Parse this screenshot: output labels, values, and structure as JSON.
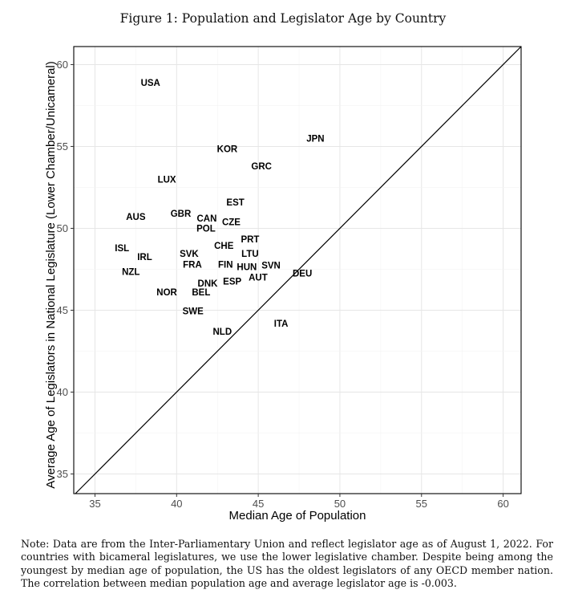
{
  "figure_title": "Figure 1: Population and Legislator Age by Country",
  "note": "Note: Data are from the Inter-Parliamentary Union and reflect legislator age as of August 1, 2022. For countries with bicameral legislatures, we use the lower legislative chamber. Despite being among the youngest by median age of population, the US has the oldest legislators of any OECD member nation. The correlation between median population age and average legislator age is -0.003.",
  "chart_data": {
    "type": "scatter",
    "xlabel": "Median Age of Population",
    "ylabel": "Average Age of Legislators in National Legislature (Lower Chamber/Unicameral)",
    "xlim": [
      33.7,
      61.1
    ],
    "ylim": [
      33.8,
      61.1
    ],
    "xticks": [
      35,
      40,
      45,
      50,
      55,
      60
    ],
    "yticks": [
      35,
      40,
      45,
      50,
      55,
      60
    ],
    "grid": true,
    "reference_line": "y = x",
    "points": [
      {
        "label": "USA",
        "x": 38.4,
        "y": 58.9
      },
      {
        "label": "JPN",
        "x": 48.5,
        "y": 55.5
      },
      {
        "label": "KOR",
        "x": 43.1,
        "y": 54.85
      },
      {
        "label": "GRC",
        "x": 45.2,
        "y": 53.8
      },
      {
        "label": "LUX",
        "x": 39.4,
        "y": 53.0
      },
      {
        "label": "EST",
        "x": 43.6,
        "y": 51.6
      },
      {
        "label": "AUS",
        "x": 37.5,
        "y": 50.7
      },
      {
        "label": "GBR",
        "x": 40.55,
        "y": 50.9
      },
      {
        "label": "CAN",
        "x": 41.7,
        "y": 50.6
      },
      {
        "label": "CZE",
        "x": 43.2,
        "y": 50.4
      },
      {
        "label": "POL",
        "x": 41.8,
        "y": 50.0
      },
      {
        "label": "ISL",
        "x": 37.0,
        "y": 48.7
      },
      {
        "label": "IRL",
        "x": 37.75,
        "y": 48.4
      },
      {
        "label": "PRT",
        "x": 44.5,
        "y": 49.0
      },
      {
        "label": "LTU",
        "x": 44.5,
        "y": 48.9
      },
      {
        "label": "CHE",
        "x": 42.6,
        "y": 48.6
      },
      {
        "label": "SVK",
        "x": 41.7,
        "y": 48.3
      },
      {
        "label": "FRA",
        "x": 41.8,
        "y": 48.0
      },
      {
        "label": "FIN",
        "x": 42.7,
        "y": 48.0
      },
      {
        "label": "SVN",
        "x": 44.8,
        "y": 47.5
      },
      {
        "label": "AUT",
        "x": 44.4,
        "y": 47.25
      },
      {
        "label": "HUN",
        "x": 44.3,
        "y": 47.2
      },
      {
        "label": "ESP",
        "x": 43.8,
        "y": 46.95
      },
      {
        "label": "DEU",
        "x": 47.7,
        "y": 47.25
      },
      {
        "label": "NZL",
        "x": 37.2,
        "y": 47.35
      },
      {
        "label": "DNK",
        "x": 41.9,
        "y": 46.65
      },
      {
        "label": "NOR",
        "x": 39.4,
        "y": 46.1
      },
      {
        "label": "BEL",
        "x": 41.5,
        "y": 46.1
      },
      {
        "label": "SWE",
        "x": 41.0,
        "y": 44.95
      },
      {
        "label": "ITA",
        "x": 46.4,
        "y": 44.2
      },
      {
        "label": "NLD",
        "x": 42.8,
        "y": 43.7
      }
    ]
  }
}
